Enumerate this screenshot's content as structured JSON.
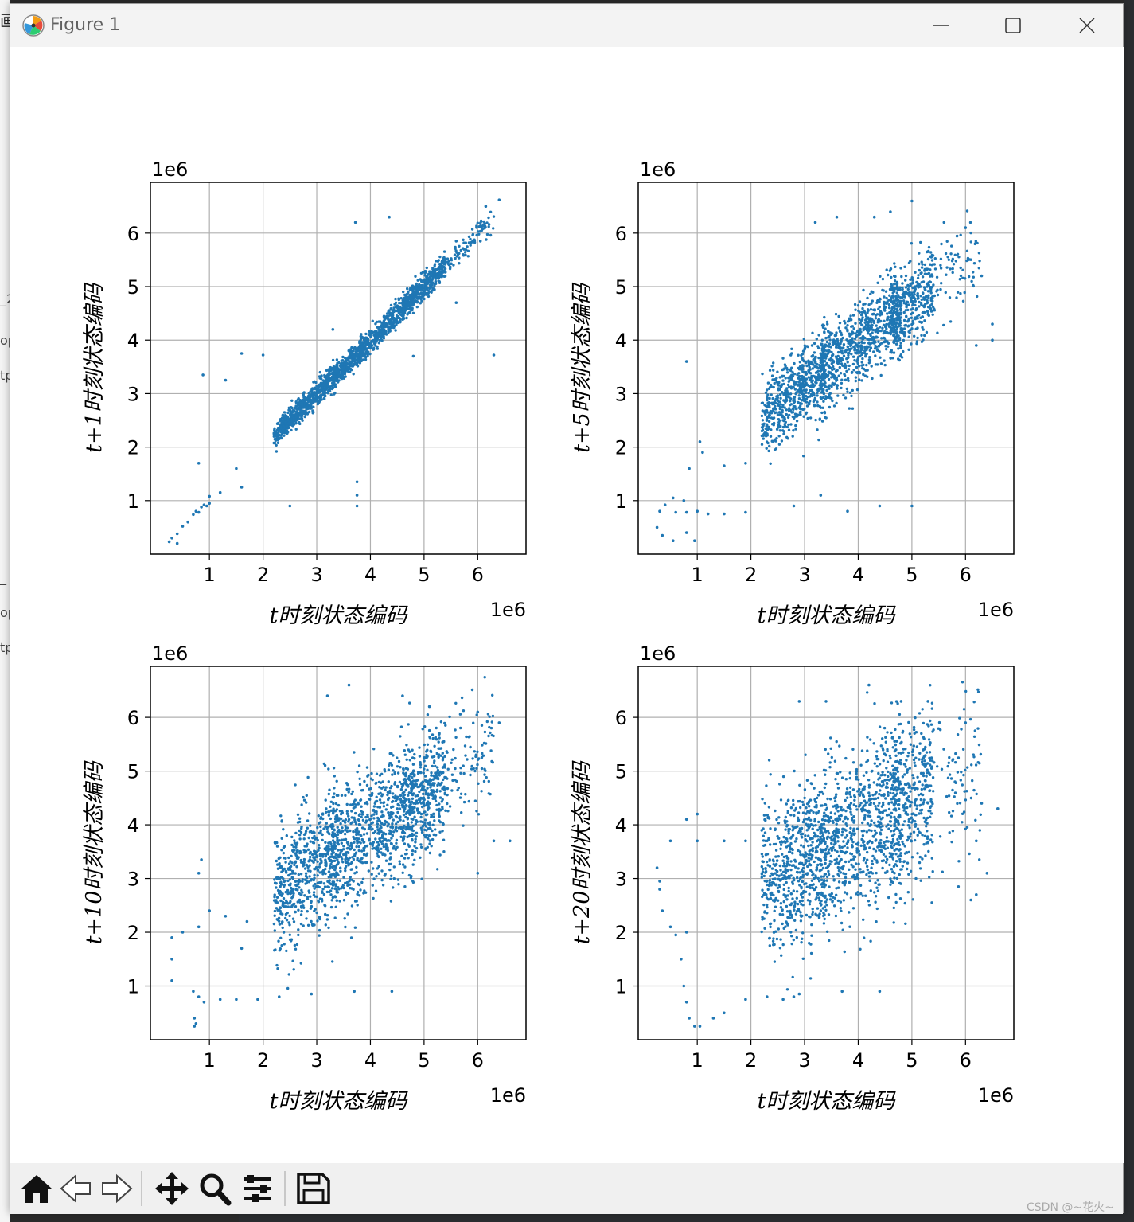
{
  "window": {
    "title": "Figure 1"
  },
  "toolbar": {
    "buttons": [
      "home-icon",
      "back-icon",
      "forward-icon",
      "pan-icon",
      "zoom-icon",
      "configure-subplots-icon",
      "save-icon"
    ]
  },
  "background": {
    "watermark": "CSDN @~花火~",
    "fragments": [
      "画",
      "_2",
      "op",
      "tp",
      "_",
      "op",
      "tp"
    ]
  },
  "chart_data": [
    {
      "type": "scatter",
      "xlabel": "t时刻状态编码",
      "ylabel": "t+1时刻状态编码",
      "x_offset_label": "1e6",
      "y_offset_label": "1e6",
      "xlim": [
        -0.1,
        6.9
      ],
      "ylim": [
        0.0,
        6.95
      ],
      "xticks": [
        1,
        2,
        3,
        4,
        5,
        6
      ],
      "yticks": [
        1,
        2,
        3,
        4,
        5,
        6
      ],
      "grid": true,
      "color": "#1f77b4",
      "lag": 1,
      "spread": 0.12,
      "points": [
        [
          0.25,
          0.23
        ],
        [
          0.3,
          0.3
        ],
        [
          0.4,
          0.38
        ],
        [
          0.5,
          0.52
        ],
        [
          0.6,
          0.6
        ],
        [
          0.7,
          0.74
        ],
        [
          0.75,
          0.8
        ],
        [
          0.8,
          0.78
        ],
        [
          0.85,
          0.88
        ],
        [
          0.9,
          0.92
        ],
        [
          0.95,
          0.9
        ],
        [
          1.0,
          1.08
        ],
        [
          0.88,
          3.35
        ],
        [
          1.3,
          3.25
        ],
        [
          1.6,
          3.75
        ],
        [
          2.0,
          3.72
        ],
        [
          0.8,
          1.7
        ],
        [
          1.5,
          1.6
        ],
        [
          1.6,
          1.25
        ],
        [
          1.0,
          0.95
        ],
        [
          2.5,
          0.9
        ],
        [
          3.75,
          0.9
        ],
        [
          3.75,
          1.35
        ],
        [
          3.72,
          6.2
        ],
        [
          3.3,
          4.2
        ],
        [
          3.75,
          1.1
        ],
        [
          4.35,
          6.3
        ],
        [
          6.3,
          3.72
        ],
        [
          4.8,
          3.7
        ],
        [
          5.6,
          5.85
        ],
        [
          6.15,
          6.5
        ],
        [
          6.4,
          6.62
        ],
        [
          5.6,
          4.7
        ],
        [
          6.05,
          5.85
        ],
        [
          1.2,
          1.15
        ],
        [
          0.4,
          0.2
        ]
      ]
    },
    {
      "type": "scatter",
      "xlabel": "t时刻状态编码",
      "ylabel": "t+5时刻状态编码",
      "x_offset_label": "1e6",
      "y_offset_label": "1e6",
      "xlim": [
        -0.1,
        6.9
      ],
      "ylim": [
        0.0,
        6.95
      ],
      "xticks": [
        1,
        2,
        3,
        4,
        5,
        6
      ],
      "yticks": [
        1,
        2,
        3,
        4,
        5,
        6
      ],
      "grid": true,
      "color": "#1f77b4",
      "lag": 5,
      "spread": 0.38,
      "points": [
        [
          0.3,
          0.8
        ],
        [
          0.4,
          0.92
        ],
        [
          0.55,
          1.05
        ],
        [
          0.75,
          1.0
        ],
        [
          0.25,
          0.5
        ],
        [
          0.35,
          0.35
        ],
        [
          0.55,
          0.25
        ],
        [
          0.8,
          0.4
        ],
        [
          0.95,
          0.25
        ],
        [
          0.6,
          0.78
        ],
        [
          0.8,
          0.78
        ],
        [
          1.0,
          0.8
        ],
        [
          1.2,
          0.75
        ],
        [
          1.5,
          0.75
        ],
        [
          1.9,
          0.78
        ],
        [
          0.85,
          1.6
        ],
        [
          0.8,
          3.6
        ],
        [
          1.05,
          2.1
        ],
        [
          1.5,
          1.65
        ],
        [
          1.9,
          1.7
        ],
        [
          3.2,
          6.2
        ],
        [
          3.6,
          6.3
        ],
        [
          4.3,
          6.3
        ],
        [
          4.6,
          6.4
        ],
        [
          5.0,
          6.6
        ],
        [
          5.6,
          6.2
        ],
        [
          6.0,
          6.1
        ],
        [
          6.3,
          5.2
        ],
        [
          6.5,
          4.3
        ],
        [
          6.5,
          4.0
        ],
        [
          6.2,
          3.9
        ],
        [
          2.8,
          0.9
        ],
        [
          3.8,
          0.8
        ],
        [
          4.4,
          0.9
        ],
        [
          5.0,
          0.9
        ],
        [
          3.3,
          1.1
        ],
        [
          1.1,
          1.9
        ]
      ]
    },
    {
      "type": "scatter",
      "xlabel": "t时刻状态编码",
      "ylabel": "t+10时刻状态编码",
      "x_offset_label": "1e6",
      "y_offset_label": "1e6",
      "xlim": [
        -0.1,
        6.9
      ],
      "ylim": [
        0.0,
        6.95
      ],
      "xticks": [
        1,
        2,
        3,
        4,
        5,
        6
      ],
      "yticks": [
        1,
        2,
        3,
        4,
        5,
        6
      ],
      "grid": true,
      "color": "#1f77b4",
      "lag": 10,
      "spread": 0.6,
      "points": [
        [
          0.3,
          1.9
        ],
        [
          0.5,
          2.0
        ],
        [
          0.8,
          2.1
        ],
        [
          1.0,
          2.4
        ],
        [
          0.3,
          1.1
        ],
        [
          0.3,
          1.5
        ],
        [
          0.7,
          0.9
        ],
        [
          0.8,
          0.8
        ],
        [
          0.9,
          0.7
        ],
        [
          0.75,
          0.3
        ],
        [
          0.72,
          0.25
        ],
        [
          0.72,
          0.4
        ],
        [
          1.2,
          0.75
        ],
        [
          1.5,
          0.75
        ],
        [
          1.9,
          0.75
        ],
        [
          2.3,
          0.8
        ],
        [
          0.85,
          3.35
        ],
        [
          1.6,
          1.7
        ],
        [
          1.3,
          2.3
        ],
        [
          1.7,
          2.2
        ],
        [
          2.9,
          0.85
        ],
        [
          3.7,
          0.9
        ],
        [
          4.4,
          0.9
        ],
        [
          3.2,
          6.4
        ],
        [
          3.6,
          6.6
        ],
        [
          4.6,
          6.4
        ],
        [
          5.1,
          6.2
        ],
        [
          6.0,
          6.1
        ],
        [
          6.4,
          5.9
        ],
        [
          6.6,
          3.7
        ],
        [
          6.3,
          3.7
        ],
        [
          6.0,
          3.1
        ],
        [
          0.8,
          3.1
        ]
      ]
    },
    {
      "type": "scatter",
      "xlabel": "t时刻状态编码",
      "ylabel": "t+20时刻状态编码",
      "x_offset_label": "1e6",
      "y_offset_label": "1e6",
      "xlim": [
        -0.1,
        6.9
      ],
      "ylim": [
        0.0,
        6.95
      ],
      "xticks": [
        1,
        2,
        3,
        4,
        5,
        6
      ],
      "yticks": [
        1,
        2,
        3,
        4,
        5,
        6
      ],
      "grid": true,
      "color": "#1f77b4",
      "lag": 20,
      "spread": 0.75,
      "points": [
        [
          0.3,
          2.8
        ],
        [
          0.25,
          3.2
        ],
        [
          0.35,
          2.4
        ],
        [
          0.5,
          2.1
        ],
        [
          0.6,
          1.95
        ],
        [
          0.8,
          2.0
        ],
        [
          0.5,
          3.7
        ],
        [
          0.8,
          4.1
        ],
        [
          1.0,
          4.2
        ],
        [
          0.7,
          1.5
        ],
        [
          0.75,
          1.0
        ],
        [
          0.8,
          0.7
        ],
        [
          0.85,
          0.4
        ],
        [
          0.95,
          0.25
        ],
        [
          1.05,
          0.25
        ],
        [
          1.3,
          0.4
        ],
        [
          1.5,
          0.5
        ],
        [
          1.9,
          0.75
        ],
        [
          2.3,
          0.8
        ],
        [
          2.8,
          0.8
        ],
        [
          2.6,
          0.75
        ],
        [
          2.9,
          0.85
        ],
        [
          3.7,
          0.9
        ],
        [
          4.4,
          0.9
        ],
        [
          1.0,
          3.7
        ],
        [
          1.5,
          3.7
        ],
        [
          1.9,
          3.7
        ],
        [
          2.9,
          6.3
        ],
        [
          3.4,
          6.3
        ],
        [
          4.2,
          6.6
        ],
        [
          4.8,
          6.3
        ],
        [
          5.3,
          6.3
        ],
        [
          6.0,
          5.9
        ],
        [
          6.3,
          4.4
        ],
        [
          6.6,
          4.3
        ],
        [
          6.2,
          3.7
        ],
        [
          6.4,
          3.1
        ],
        [
          6.2,
          2.7
        ],
        [
          6.1,
          2.6
        ],
        [
          0.3,
          2.95
        ]
      ]
    }
  ]
}
